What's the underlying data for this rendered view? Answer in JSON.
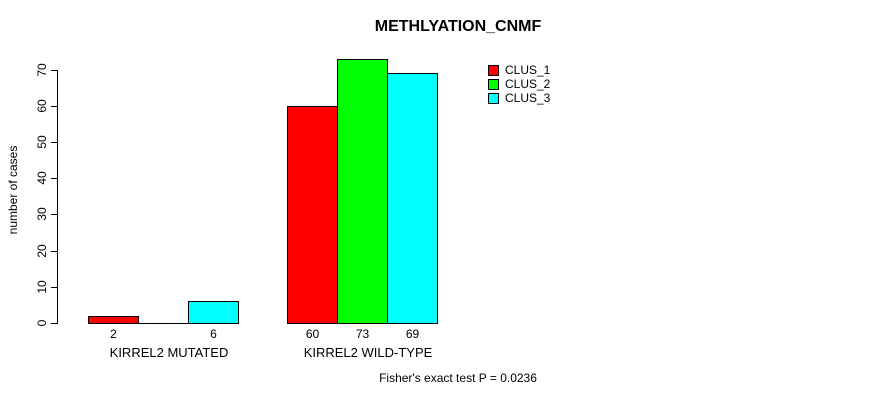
{
  "title": "METHLYATION_CNMF",
  "caption": "Fisher's exact test P = 0.0236",
  "chart_data": {
    "type": "bar",
    "title": "METHLYATION_CNMF",
    "ylabel": "number of cases",
    "annotation": "Fisher's exact test P = 0.0236",
    "categories": [
      "KIRREL2 MUTATED",
      "KIRREL2 WILD-TYPE"
    ],
    "series": [
      {
        "name": "CLUS_1",
        "color": "#ff0000",
        "values": [
          2,
          60
        ]
      },
      {
        "name": "CLUS_2",
        "color": "#00ff00",
        "values": [
          0,
          73
        ]
      },
      {
        "name": "CLUS_3",
        "color": "#00ffff",
        "values": [
          6,
          69
        ]
      }
    ],
    "value_labels": [
      [
        "2",
        "",
        "6"
      ],
      [
        "60",
        "73",
        "69"
      ]
    ],
    "yticks": [
      0,
      10,
      20,
      30,
      40,
      50,
      60,
      70
    ],
    "ylim": [
      0,
      73
    ],
    "grid": false,
    "legend_position": "top-right",
    "bar_border_color": "#000000",
    "background_color": "#ffffff"
  }
}
